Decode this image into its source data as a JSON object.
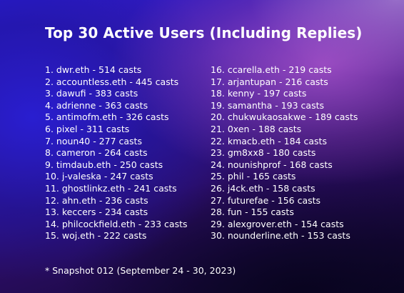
{
  "title": "Top 30 Active Users (Including Replies)",
  "users": [
    "1. dwr.eth - 514 casts",
    "2. accountless.eth - 445 casts",
    "3. dawufi - 383 casts",
    "4. adrienne - 363 casts",
    "5. antimofm.eth - 326 casts",
    "6. pixel - 311 casts",
    "7. noun40 - 277 casts",
    "8. cameron - 264 casts",
    "9. timdaub.eth - 250 casts",
    "10. j-valeska - 247 casts",
    "11. ghostlinkz.eth - 241 casts",
    "12. ahn.eth - 236 casts",
    "13. keccers - 234 casts",
    "14. philcockfield.eth - 233 casts",
    "15. woj.eth - 222 casts",
    "16. ccarella.eth - 219 casts",
    "17. arjantupan - 216 casts",
    "18. kenny - 197 casts",
    "19. samantha - 193 casts",
    "20. chukwukaosakwe - 189 casts",
    "21. 0xen - 188 casts",
    "22. kmacb.eth - 184 casts",
    "23. gm8xx8 - 180 casts",
    "24. nounishprof - 168 casts",
    "25. phil - 165 casts",
    "26. j4ck.eth - 158 casts",
    "27. futurefae - 156 casts",
    "28. fun - 155 casts",
    "29. alexgrover.eth - 154 casts",
    "30. nounderline.eth - 153 casts"
  ],
  "footnote": "* Snapshot 012 (September 24 - 30, 2023)",
  "colors": {
    "text": "#ffffff",
    "background_blue": "#2a1bd0",
    "background_purple": "#ba5cd2",
    "background_dark": "#0d0626"
  }
}
